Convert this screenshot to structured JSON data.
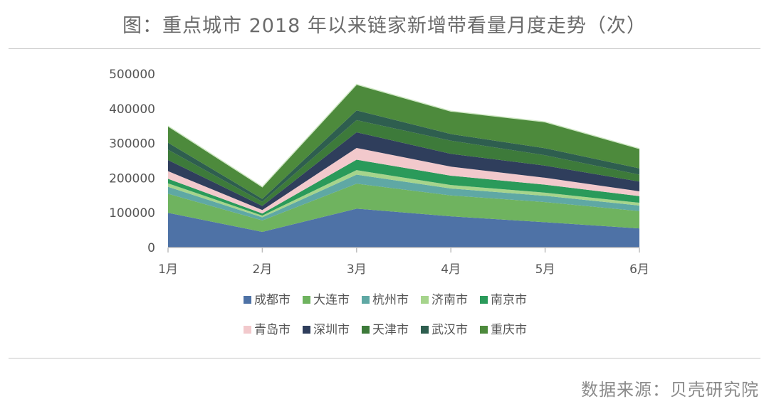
{
  "title": "图：重点城市 2018 年以来链家新增带看量月度走势（次）",
  "source": "数据来源：贝壳研究院",
  "chart_data": {
    "type": "area",
    "stacked": true,
    "categories": [
      "1月",
      "2月",
      "3月",
      "4月",
      "5月",
      "6月"
    ],
    "ylim": [
      0,
      500000
    ],
    "yticks": [
      "500000",
      "400000",
      "300000",
      "200000",
      "100000",
      "0"
    ],
    "legend_position": "bottom",
    "series": [
      {
        "name": "成都市",
        "color": "#4e72a6",
        "values": [
          100000,
          45000,
          112000,
          90000,
          73000,
          55000
        ]
      },
      {
        "name": "大连市",
        "color": "#6fb35f",
        "values": [
          55000,
          33000,
          72000,
          60000,
          58000,
          50000
        ]
      },
      {
        "name": "杭州市",
        "color": "#5fa8a4",
        "values": [
          20000,
          9000,
          26000,
          20000,
          18000,
          16000
        ]
      },
      {
        "name": "济南市",
        "color": "#a6d48c",
        "values": [
          10000,
          5000,
          13000,
          10000,
          9000,
          8000
        ]
      },
      {
        "name": "南京市",
        "color": "#2a9a5a",
        "values": [
          13000,
          6000,
          30000,
          27000,
          23000,
          19000
        ]
      },
      {
        "name": "青岛市",
        "color": "#f2c9cc",
        "values": [
          22000,
          10000,
          34000,
          26000,
          20000,
          14000
        ]
      },
      {
        "name": "深圳市",
        "color": "#2f3e5c",
        "values": [
          32000,
          12000,
          45000,
          37000,
          35000,
          28000
        ]
      },
      {
        "name": "天津市",
        "color": "#3d7a3a",
        "values": [
          30000,
          12000,
          35000,
          38000,
          30000,
          20000
        ]
      },
      {
        "name": "武汉市",
        "color": "#2e5e4f",
        "values": [
          20000,
          8000,
          28000,
          19000,
          20000,
          18000
        ]
      },
      {
        "name": "重庆市",
        "color": "#4d8a3c",
        "values": [
          48000,
          35000,
          75000,
          66000,
          76000,
          57000
        ]
      }
    ]
  }
}
